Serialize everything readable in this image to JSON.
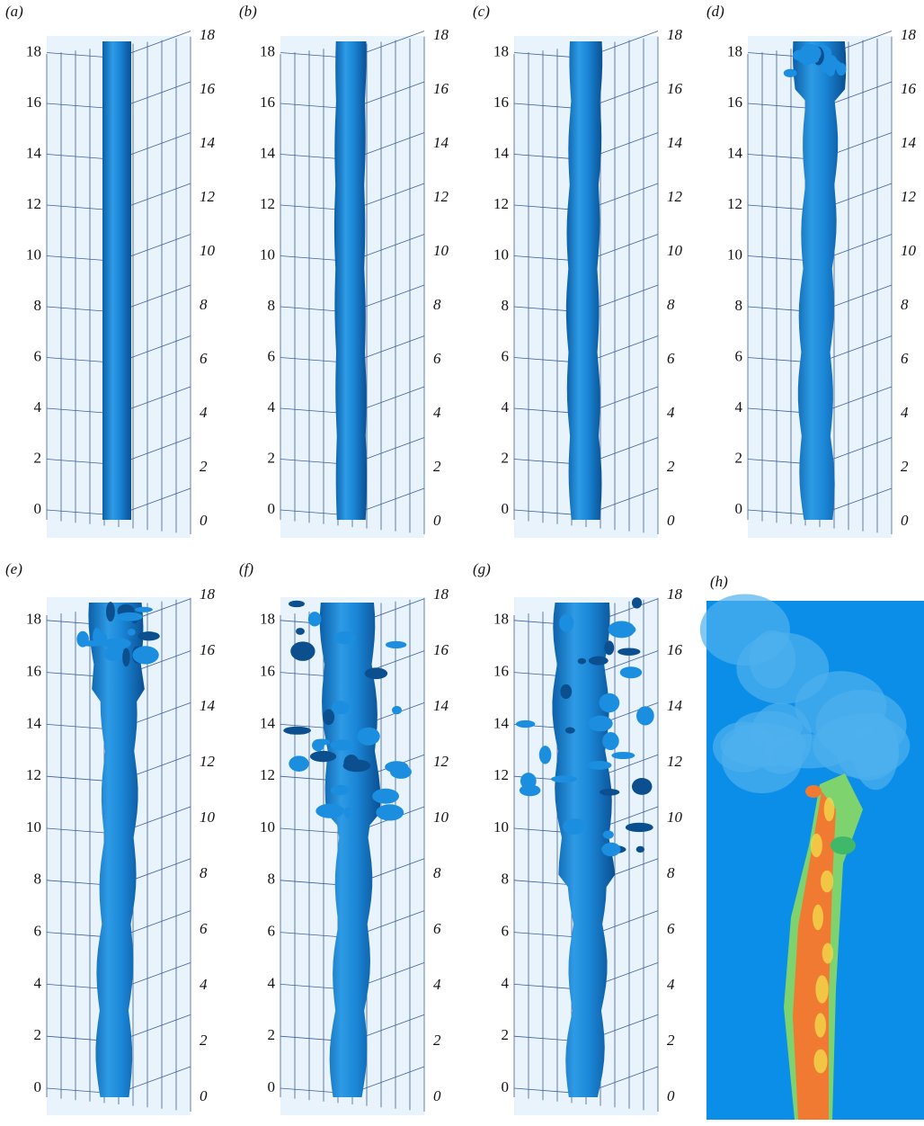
{
  "panels": [
    {
      "label": "(a)",
      "left_ticks": [
        "0",
        "2",
        "4",
        "6",
        "8",
        "10",
        "12",
        "14",
        "16",
        "18"
      ],
      "right_ticks": [
        "0",
        "2",
        "4",
        "6",
        "8",
        "10",
        "12",
        "14",
        "16",
        "18"
      ]
    },
    {
      "label": "(b)",
      "left_ticks": [
        "0",
        "2",
        "4",
        "6",
        "8",
        "10",
        "12",
        "14",
        "16",
        "18"
      ],
      "right_ticks": [
        "0",
        "2",
        "4",
        "6",
        "8",
        "10",
        "12",
        "14",
        "16",
        "18"
      ]
    },
    {
      "label": "(c)",
      "left_ticks": [
        "0",
        "2",
        "4",
        "6",
        "8",
        "10",
        "12",
        "14",
        "16",
        "18"
      ],
      "right_ticks": [
        "0",
        "2",
        "4",
        "6",
        "8",
        "10",
        "12",
        "14",
        "16",
        "18"
      ]
    },
    {
      "label": "(d)",
      "left_ticks": [
        "0",
        "2",
        "4",
        "6",
        "8",
        "10",
        "12",
        "14",
        "16",
        "18"
      ],
      "right_ticks": [
        "0",
        "2",
        "4",
        "6",
        "8",
        "10",
        "12",
        "14",
        "16",
        "18"
      ]
    },
    {
      "label": "(e)",
      "left_ticks": [
        "0",
        "2",
        "4",
        "6",
        "8",
        "10",
        "12",
        "14",
        "16",
        "18"
      ],
      "right_ticks": [
        "0",
        "2",
        "4",
        "6",
        "8",
        "10",
        "12",
        "14",
        "16",
        "18"
      ]
    },
    {
      "label": "(f)",
      "left_ticks": [
        "0",
        "2",
        "4",
        "6",
        "8",
        "10",
        "12",
        "14",
        "16",
        "18"
      ],
      "right_ticks": [
        "0",
        "2",
        "4",
        "6",
        "8",
        "10",
        "12",
        "14",
        "16",
        "18"
      ]
    },
    {
      "label": "(g)",
      "left_ticks": [
        "0",
        "2",
        "4",
        "6",
        "8",
        "10",
        "12",
        "14",
        "16",
        "18"
      ],
      "right_ticks": [
        "0",
        "2",
        "4",
        "6",
        "8",
        "10",
        "12",
        "14",
        "16",
        "18"
      ]
    }
  ],
  "contour_panel": {
    "label": "(h)"
  }
}
